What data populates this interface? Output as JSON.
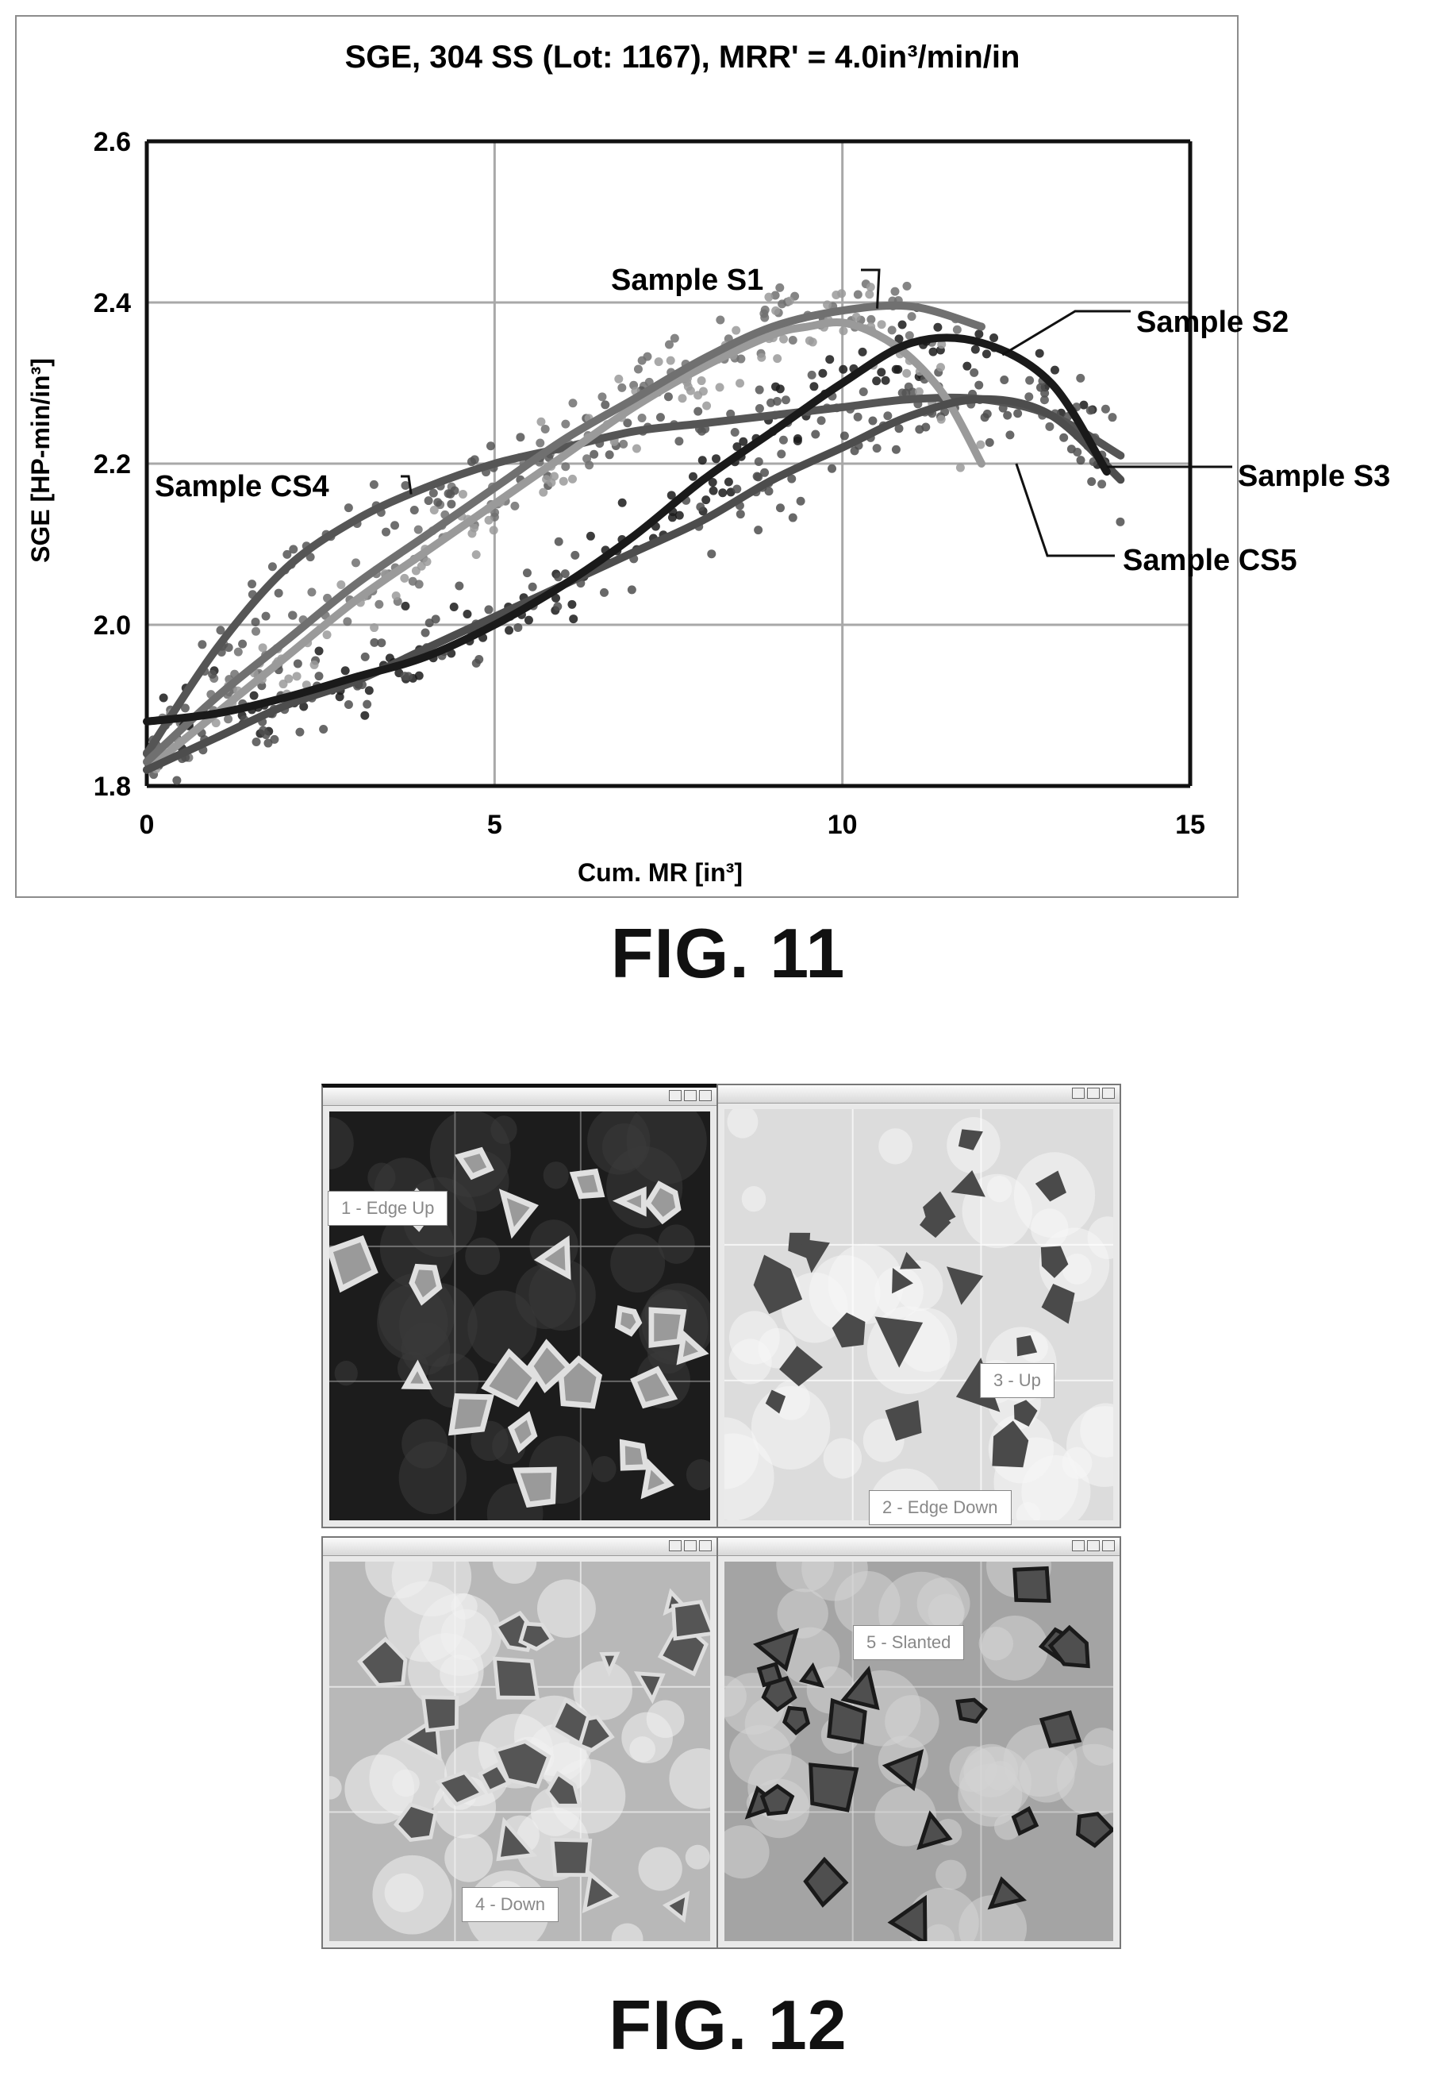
{
  "figure11": {
    "caption": "FIG. 11",
    "chart_data": {
      "type": "line",
      "title": "SGE, 304 SS (Lot: 1167), MRR' = 4.0in³/min/in",
      "xlabel": "Cum. MR [in³]",
      "ylabel": "SGE [HP-min/in³]",
      "xlim": [
        0,
        15
      ],
      "ylim": [
        1.8,
        2.6
      ],
      "x_ticks": [
        0,
        5,
        10,
        15
      ],
      "y_ticks": [
        1.8,
        2.0,
        2.2,
        2.4,
        2.6
      ],
      "x_tick_labels": [
        "0",
        "5",
        "10",
        "15"
      ],
      "y_tick_labels": [
        "1.8",
        "2.0",
        "2.2",
        "2.4",
        "2.6"
      ],
      "grid": true,
      "scatter_markers": true,
      "series": [
        {
          "name": "Sample S1",
          "color": "#707070",
          "x": [
            0,
            1,
            2,
            3,
            4,
            5,
            6,
            7,
            8,
            9,
            10,
            11,
            12
          ],
          "y": [
            1.83,
            1.91,
            1.98,
            2.05,
            2.11,
            2.17,
            2.23,
            2.28,
            2.33,
            2.37,
            2.39,
            2.395,
            2.37
          ]
        },
        {
          "name": "Sample S2",
          "color": "#1a1a1a",
          "x": [
            0,
            1,
            2,
            3,
            4,
            5,
            6,
            7,
            8,
            9,
            10,
            11,
            12,
            13,
            13.8
          ],
          "y": [
            1.88,
            1.89,
            1.91,
            1.935,
            1.96,
            2.0,
            2.05,
            2.11,
            2.18,
            2.24,
            2.3,
            2.35,
            2.35,
            2.3,
            2.19
          ]
        },
        {
          "name": "Sample S3",
          "color": "#4d4d4d",
          "x": [
            0,
            1,
            2,
            3,
            4,
            5,
            6,
            7,
            8,
            9,
            10,
            11,
            12,
            13,
            14
          ],
          "y": [
            1.82,
            1.86,
            1.9,
            1.93,
            1.97,
            2.01,
            2.05,
            2.09,
            2.13,
            2.18,
            2.22,
            2.26,
            2.28,
            2.26,
            2.18
          ]
        },
        {
          "name": "Sample CS4",
          "color": "#555555",
          "x": [
            0,
            1,
            2,
            3,
            4,
            5,
            6,
            7,
            8,
            9,
            10,
            11,
            12,
            13,
            14
          ],
          "y": [
            1.84,
            1.97,
            2.07,
            2.13,
            2.17,
            2.2,
            2.22,
            2.24,
            2.25,
            2.26,
            2.27,
            2.28,
            2.28,
            2.26,
            2.21
          ]
        },
        {
          "name": "Sample CS5",
          "color": "#9a9a9a",
          "x": [
            0,
            1,
            2,
            3,
            4,
            5,
            6,
            7,
            8,
            9,
            9.5,
            10,
            10.5,
            11,
            11.5,
            12
          ],
          "y": [
            1.82,
            1.89,
            1.96,
            2.03,
            2.09,
            2.15,
            2.21,
            2.27,
            2.32,
            2.36,
            2.37,
            2.375,
            2.36,
            2.33,
            2.28,
            2.2
          ]
        }
      ],
      "annotations": [
        {
          "text": "Sample S1",
          "series": "Sample S1"
        },
        {
          "text": "Sample S2",
          "series": "Sample S2"
        },
        {
          "text": "Sample S3",
          "series": "Sample S3"
        },
        {
          "text": "Sample CS4",
          "series": "Sample CS4"
        },
        {
          "text": "Sample CS5",
          "series": "Sample CS5"
        }
      ]
    }
  },
  "figure12": {
    "caption": "FIG. 12",
    "panels": [
      {
        "name": "top-left",
        "style": "dark",
        "label": "1 - Edge Up"
      },
      {
        "name": "top-right",
        "style": "light",
        "labels": [
          "3 - Up",
          "2 - Edge Down"
        ]
      },
      {
        "name": "bottom-left",
        "style": "outlined-light",
        "label": "4 - Down"
      },
      {
        "name": "bottom-right",
        "style": "outlined-mid",
        "label": "5 - Slanted"
      }
    ]
  }
}
